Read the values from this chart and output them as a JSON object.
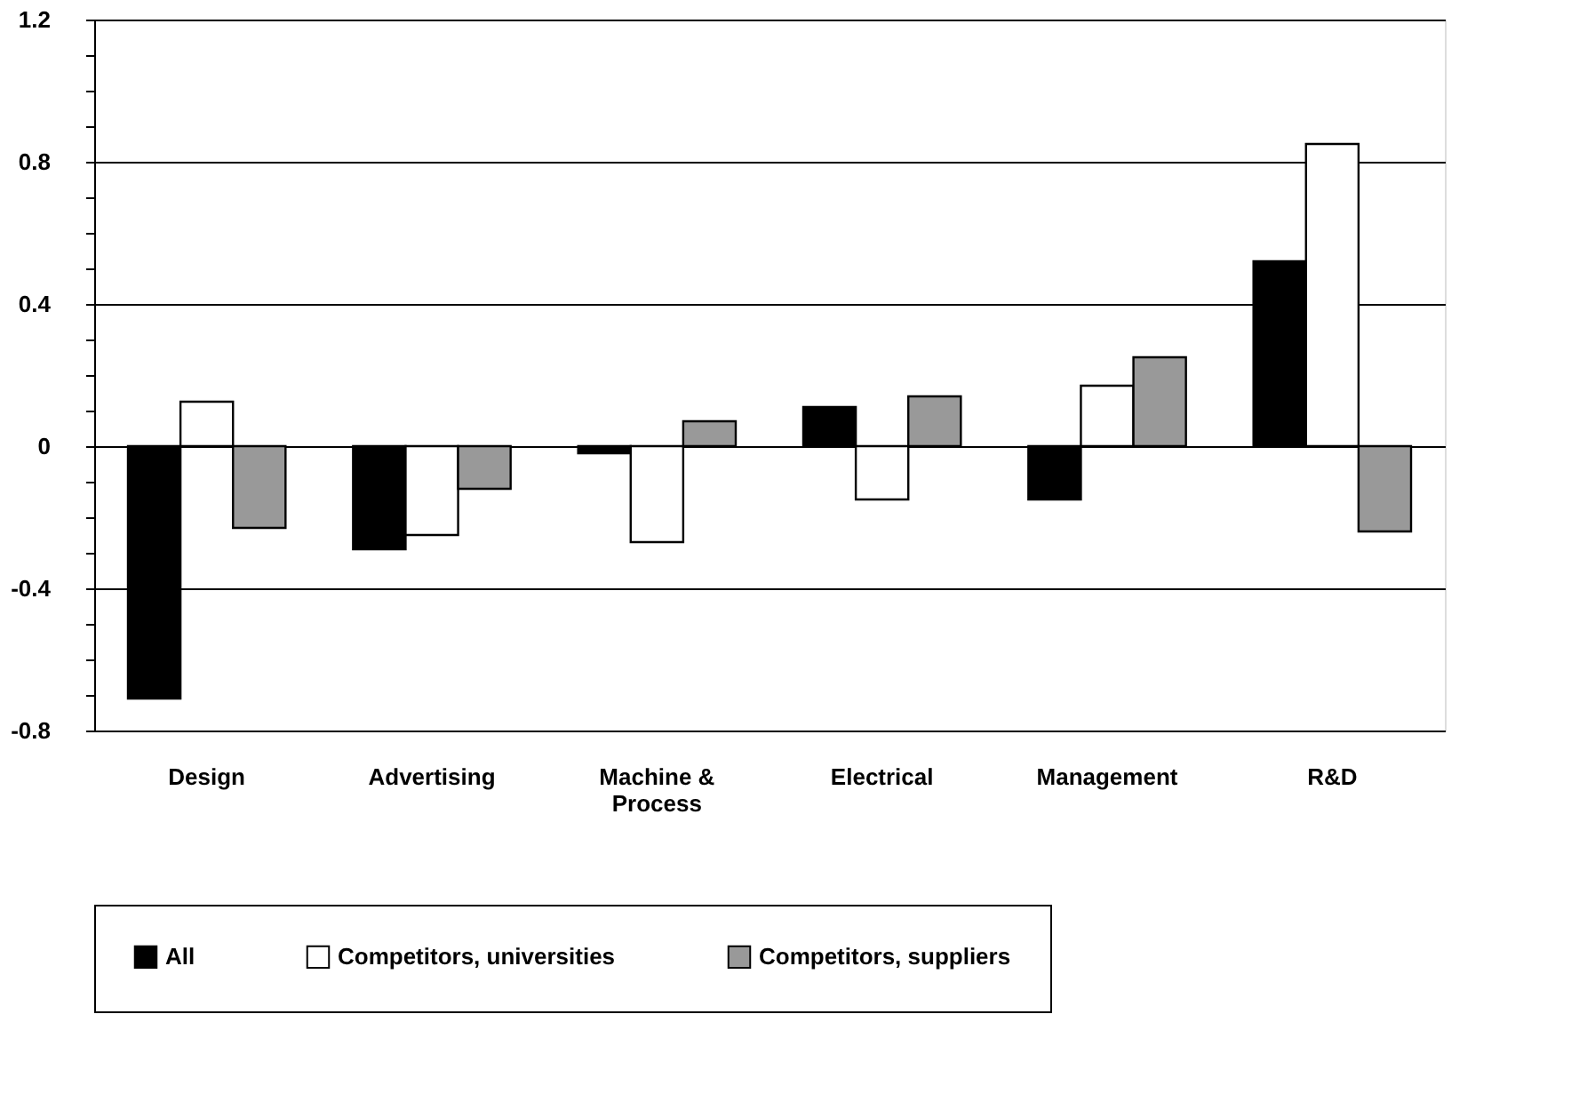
{
  "chart_data": {
    "type": "bar",
    "categories": [
      "Design",
      "Advertising",
      "Machine & Process",
      "Electrical",
      "Management",
      "R&D"
    ],
    "series": [
      {
        "name": "All",
        "color": "#000000",
        "values": [
          -0.71,
          -0.29,
          -0.02,
          0.11,
          -0.15,
          0.52
        ]
      },
      {
        "name": "Competitors, universities",
        "color": "#ffffff",
        "values": [
          0.125,
          -0.25,
          -0.27,
          -0.15,
          0.17,
          0.85
        ]
      },
      {
        "name": "Competitors, suppliers",
        "color": "#999999",
        "values": [
          -0.23,
          -0.12,
          0.07,
          0.14,
          0.25,
          -0.24
        ]
      }
    ],
    "ylim": [
      -0.8,
      1.2
    ],
    "yticks": [
      -0.8,
      {
        "value": -0.7,
        "label": null
      },
      {
        "value": -0.6,
        "label": null
      },
      {
        "value": -0.5,
        "label": null
      },
      -0.4,
      {
        "value": -0.3,
        "label": null
      },
      {
        "value": -0.2,
        "label": null
      },
      {
        "value": -0.1,
        "label": null
      },
      0,
      {
        "value": 0.1,
        "label": null
      },
      {
        "value": 0.2,
        "label": null
      },
      {
        "value": 0.3,
        "label": null
      },
      0.4,
      {
        "value": 0.5,
        "label": null
      },
      {
        "value": 0.6,
        "label": null
      },
      {
        "value": 0.7,
        "label": null
      },
      0.8,
      {
        "value": 0.9,
        "label": null
      },
      {
        "value": 1.0,
        "label": null
      },
      {
        "value": 1.1,
        "label": null
      },
      1.2
    ],
    "grid": "y",
    "legend": "bottom"
  }
}
